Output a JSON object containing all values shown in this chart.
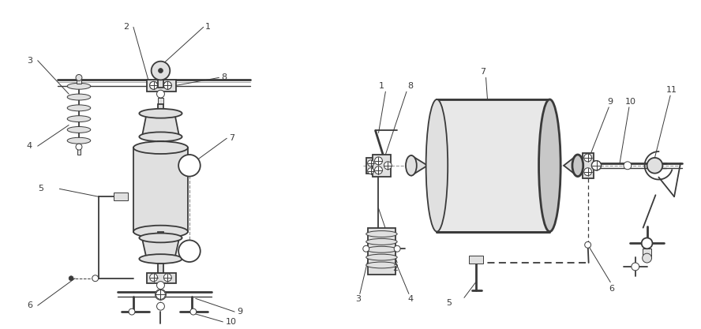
{
  "bg_color": "#ffffff",
  "line_color": "#3a3a3a",
  "lw_main": 1.3,
  "lw_thick": 2.0,
  "lw_thin": 0.7,
  "label_fontsize": 8.0,
  "fig_width": 8.88,
  "fig_height": 4.17,
  "dpi": 100
}
